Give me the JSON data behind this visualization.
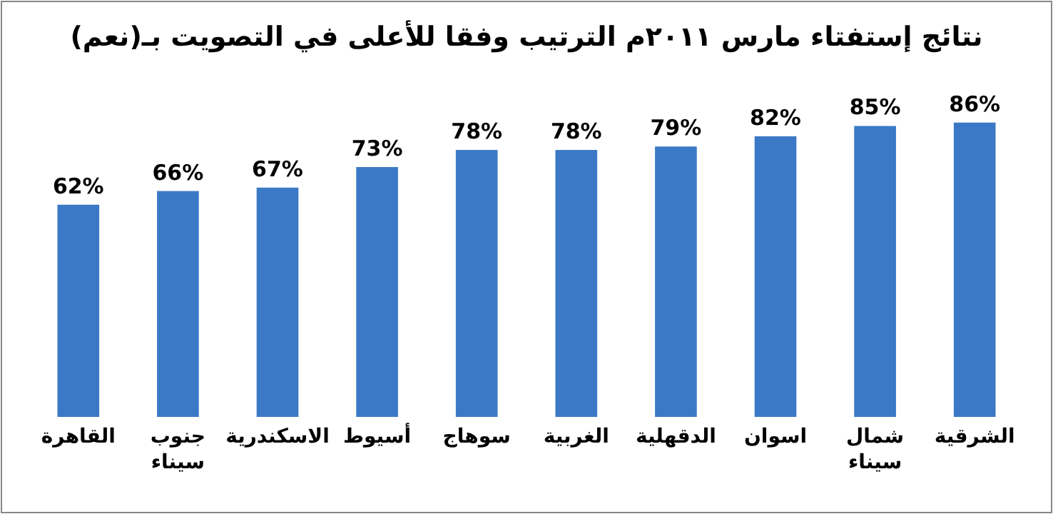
{
  "chart_data": {
    "type": "bar",
    "title": "نتائج إستفتاء مارس ٢٠١١م الترتيب وفقا للأعلى في التصويت بـ(نعم)",
    "categories": [
      "القاهرة",
      "جنوب سيناء",
      "الاسكندرية",
      "أسيوط",
      "سوهاج",
      "الغربية",
      "الدقهلية",
      "اسوان",
      "شمال سيناء",
      "الشرقية"
    ],
    "values": [
      62,
      66,
      67,
      73,
      78,
      78,
      79,
      82,
      85,
      86
    ],
    "value_labels": [
      "62%",
      "66%",
      "67%",
      "73%",
      "78%",
      "78%",
      "79%",
      "82%",
      "85%",
      "86%"
    ],
    "color": "#3b79c6"
  }
}
